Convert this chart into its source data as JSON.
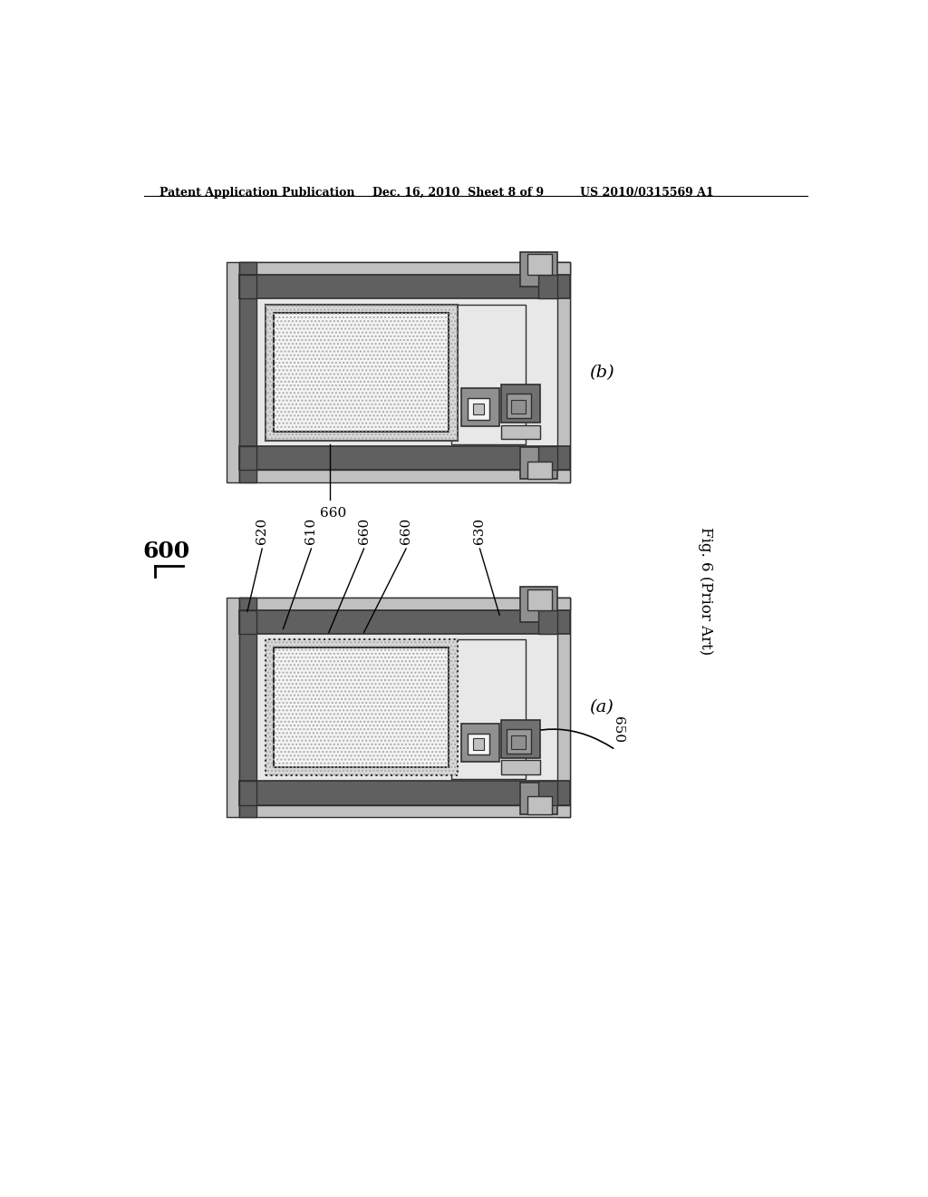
{
  "bg_color": "#ffffff",
  "header_left": "Patent Application Publication",
  "header_mid": "Dec. 16, 2010  Sheet 8 of 9",
  "header_right": "US 2010/0315569 A1",
  "fig_label": "Fig. 6 (Prior Art)",
  "label_600": "600",
  "label_b": "(b)",
  "label_a": "(a)",
  "label_660_b": "660",
  "label_620": "620",
  "label_610": "610",
  "label_660a": "660",
  "label_660b": "660",
  "label_630": "630",
  "label_650": "650",
  "colors": {
    "dark_gray": "#606060",
    "mid_gray": "#909090",
    "light_gray": "#c0c0c0",
    "very_light_gray": "#d8d8d8",
    "substrate": "#e8e8e8",
    "white": "#f4f4f4",
    "border": "#303030",
    "tft_dark": "#707070",
    "tft_mid": "#989898"
  }
}
